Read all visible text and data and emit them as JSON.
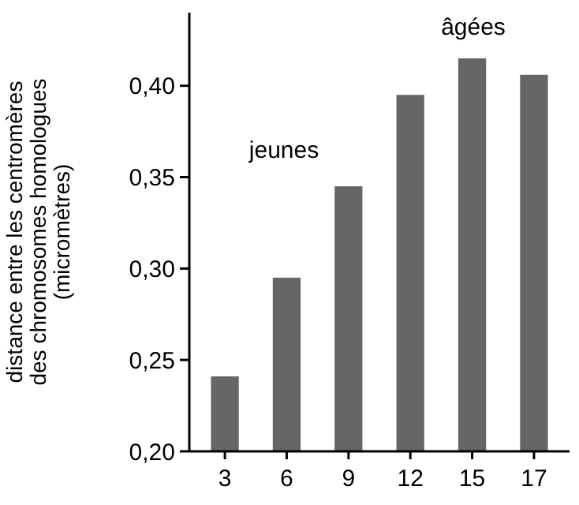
{
  "chart_data": {
    "type": "bar",
    "ylabel": "distance entre les centromères\ndes chromosomes homologues\n(micromètres)",
    "categories": [
      "3",
      "6",
      "9",
      "12",
      "15",
      "17"
    ],
    "values": [
      0.241,
      0.295,
      0.345,
      0.395,
      0.415,
      0.406
    ],
    "color": "#666666",
    "ylim": [
      0.2,
      0.44
    ],
    "yticks": [
      {
        "value": 0.2,
        "label": "0,20"
      },
      {
        "value": 0.25,
        "label": "0,25"
      },
      {
        "value": 0.3,
        "label": "0,30"
      },
      {
        "value": 0.35,
        "label": "0,35"
      },
      {
        "value": 0.4,
        "label": "0,40"
      }
    ],
    "annotations": [
      "jeunes",
      "âgées"
    ]
  }
}
